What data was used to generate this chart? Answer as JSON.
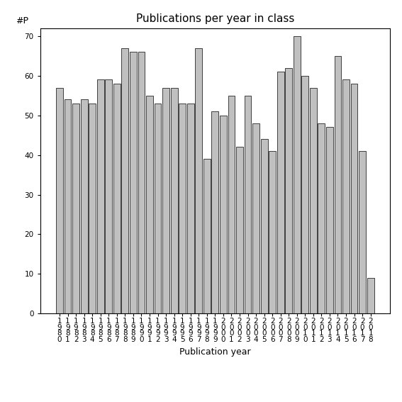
{
  "title": "Publications per year in class",
  "xlabel": "Publication year",
  "ylabel": "#P",
  "years": [
    1980,
    1981,
    1982,
    1983,
    1984,
    1985,
    1986,
    1987,
    1988,
    1989,
    1990,
    1991,
    1992,
    1993,
    1994,
    1995,
    1996,
    1997,
    1998,
    1999,
    2000,
    2001,
    2002,
    2003,
    2004,
    2005,
    2006,
    2007,
    2008,
    2009,
    2010,
    2011,
    2012,
    2013,
    2014,
    2015,
    2016,
    2017,
    2018
  ],
  "values": [
    57,
    54,
    53,
    54,
    53,
    59,
    59,
    58,
    67,
    66,
    66,
    55,
    53,
    57,
    57,
    53,
    53,
    67,
    39,
    51,
    50,
    55,
    42,
    55,
    48,
    44,
    41,
    61,
    62,
    70,
    60,
    57,
    48,
    47,
    65,
    59,
    58,
    41,
    9
  ],
  "bar_color": "#c0c0c0",
  "bar_edge_color": "#000000",
  "bar_edge_width": 0.5,
  "background_color": "#ffffff",
  "ylim": [
    0,
    72
  ],
  "yticks": [
    0,
    10,
    20,
    30,
    40,
    50,
    60,
    70
  ],
  "title_fontsize": 11,
  "axis_label_fontsize": 9,
  "tick_fontsize": 7.5
}
